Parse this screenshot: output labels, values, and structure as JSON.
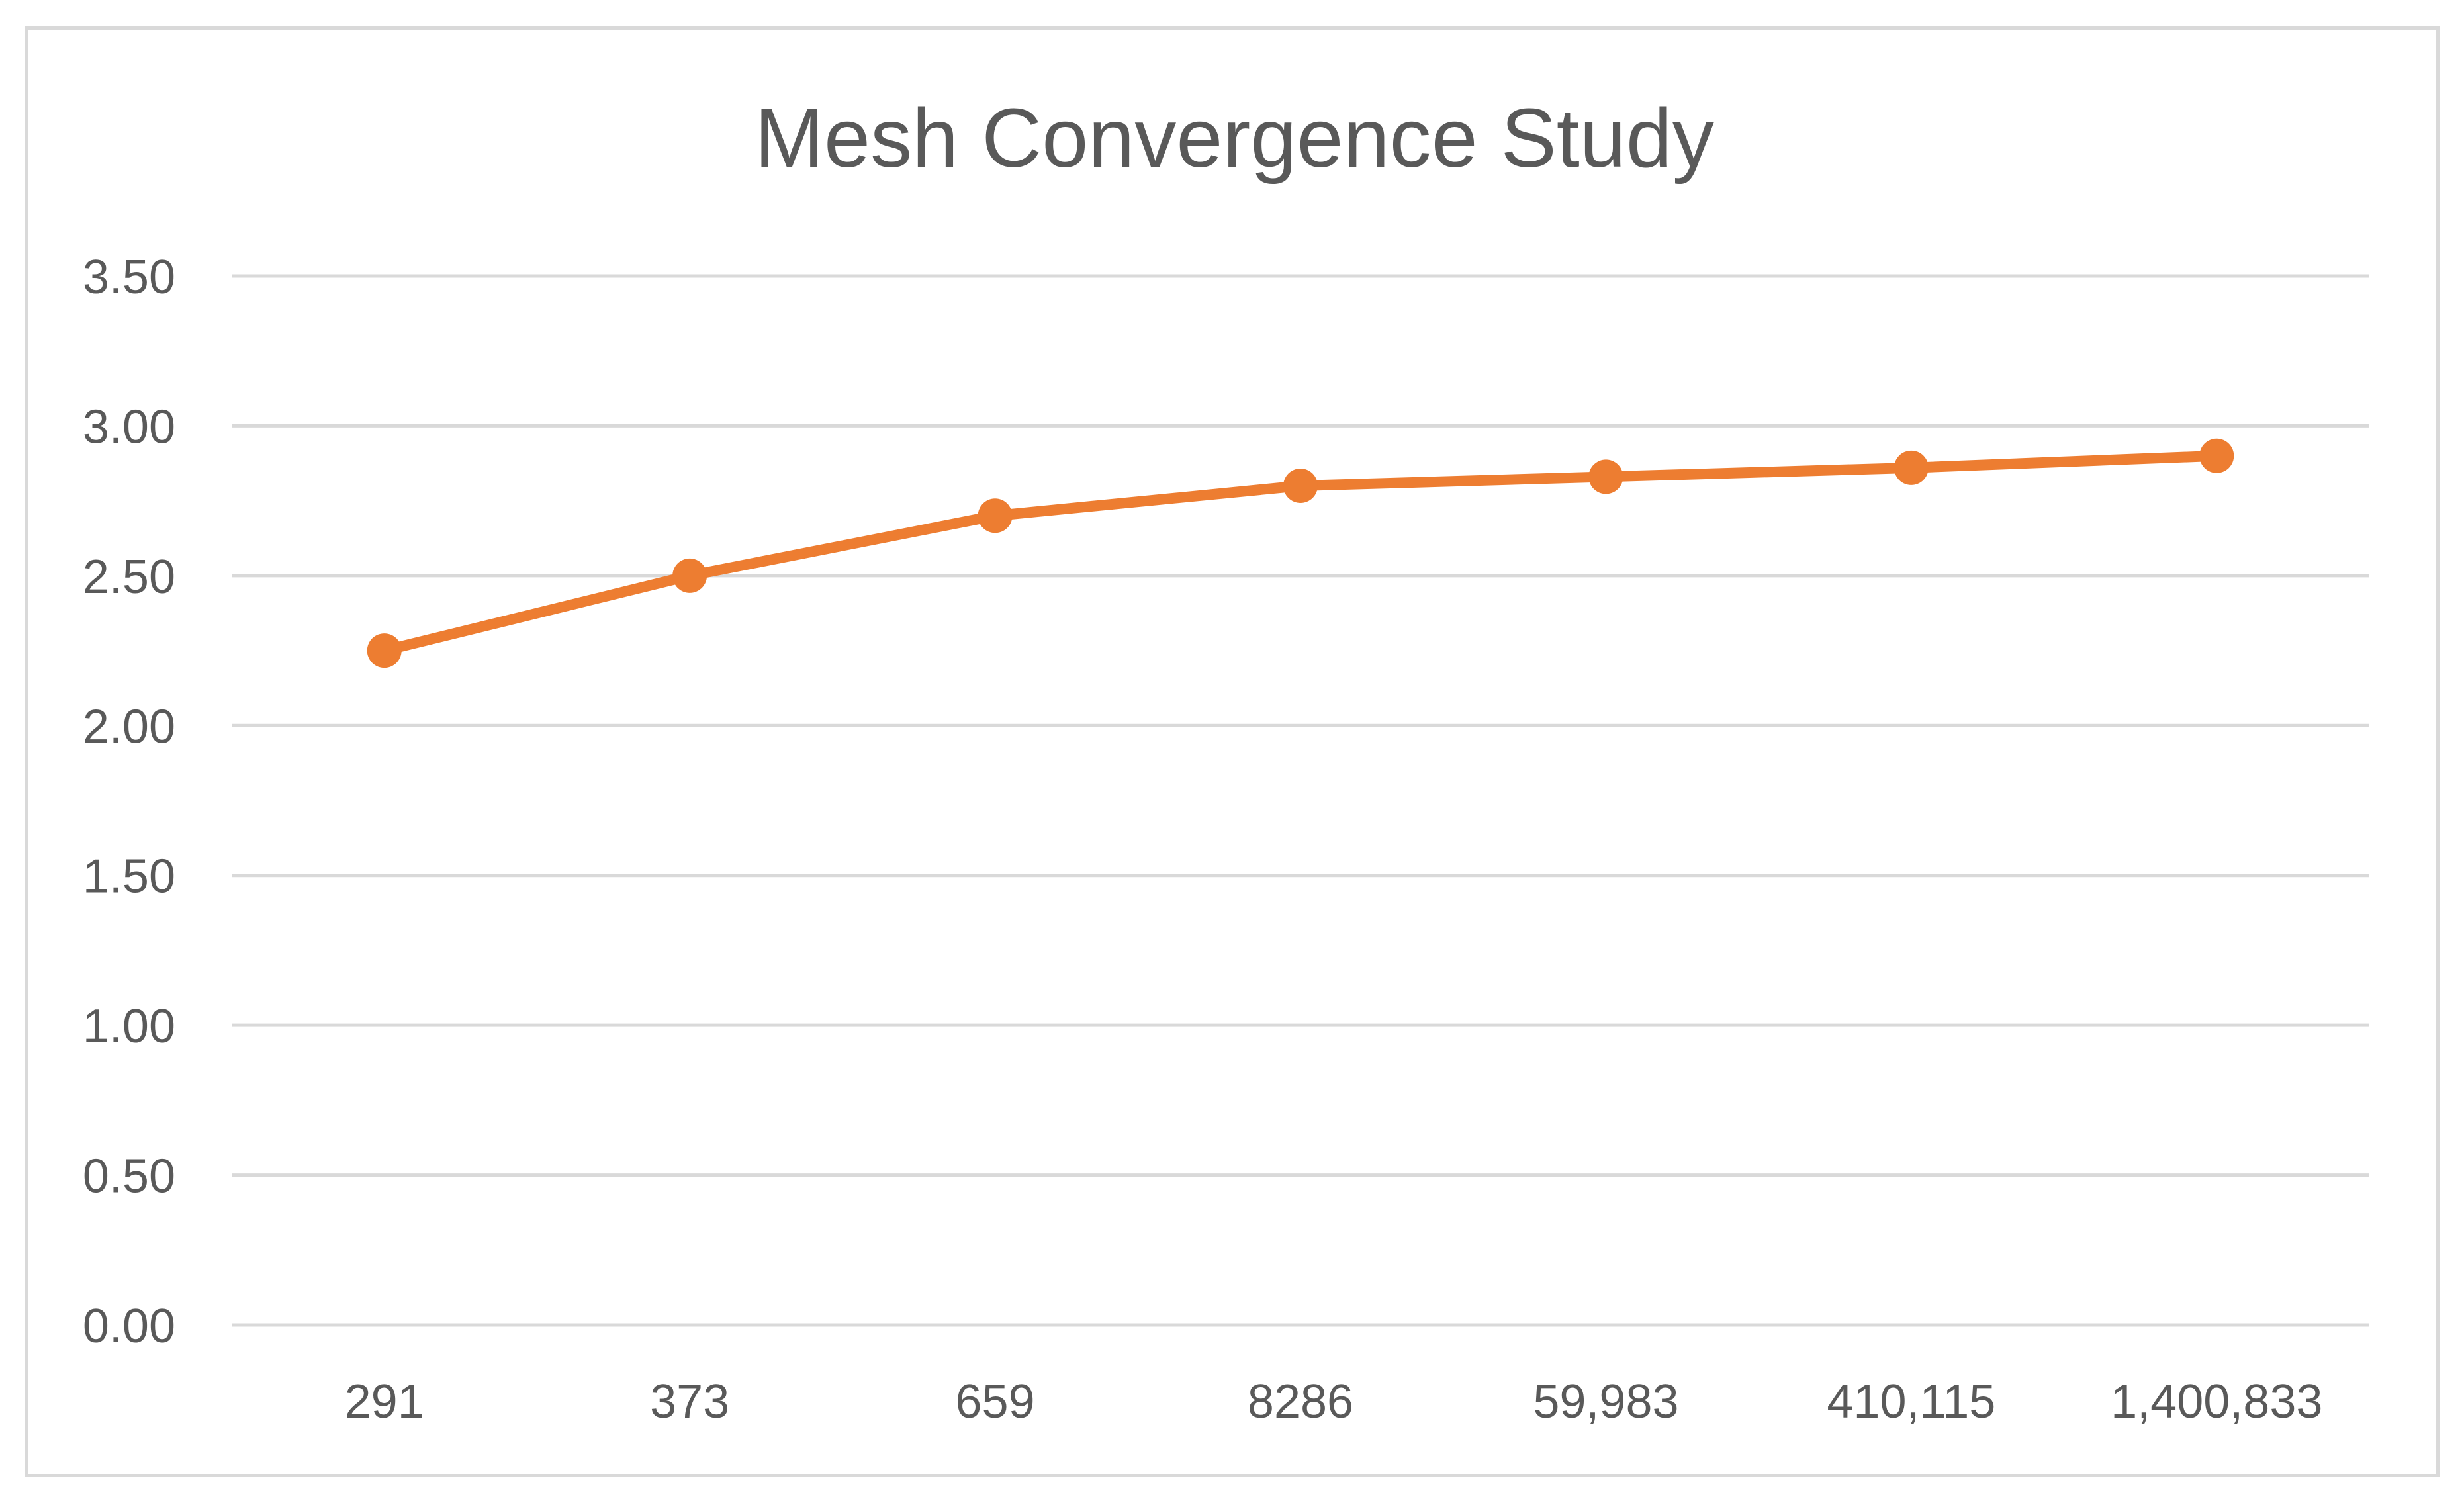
{
  "chart_data": {
    "type": "line",
    "title": "Mesh Convergence Study",
    "xlabel": "",
    "ylabel": "",
    "categories": [
      "291",
      "373",
      "659",
      "8286",
      "59,983",
      "410,115",
      "1,400,833"
    ],
    "series": [
      {
        "values": [
          2.25,
          2.5,
          2.7,
          2.8,
          2.83,
          2.86,
          2.9
        ]
      }
    ],
    "ylim": [
      0,
      3.5
    ],
    "y_ticks": [
      "0.00",
      "0.50",
      "1.00",
      "1.50",
      "2.00",
      "2.50",
      "3.00",
      "3.50"
    ],
    "grid": true,
    "legend": "none",
    "markers": true,
    "colors": {
      "series": "#ed7d31",
      "grid": "#d9d9d9",
      "text": "#595959"
    }
  }
}
